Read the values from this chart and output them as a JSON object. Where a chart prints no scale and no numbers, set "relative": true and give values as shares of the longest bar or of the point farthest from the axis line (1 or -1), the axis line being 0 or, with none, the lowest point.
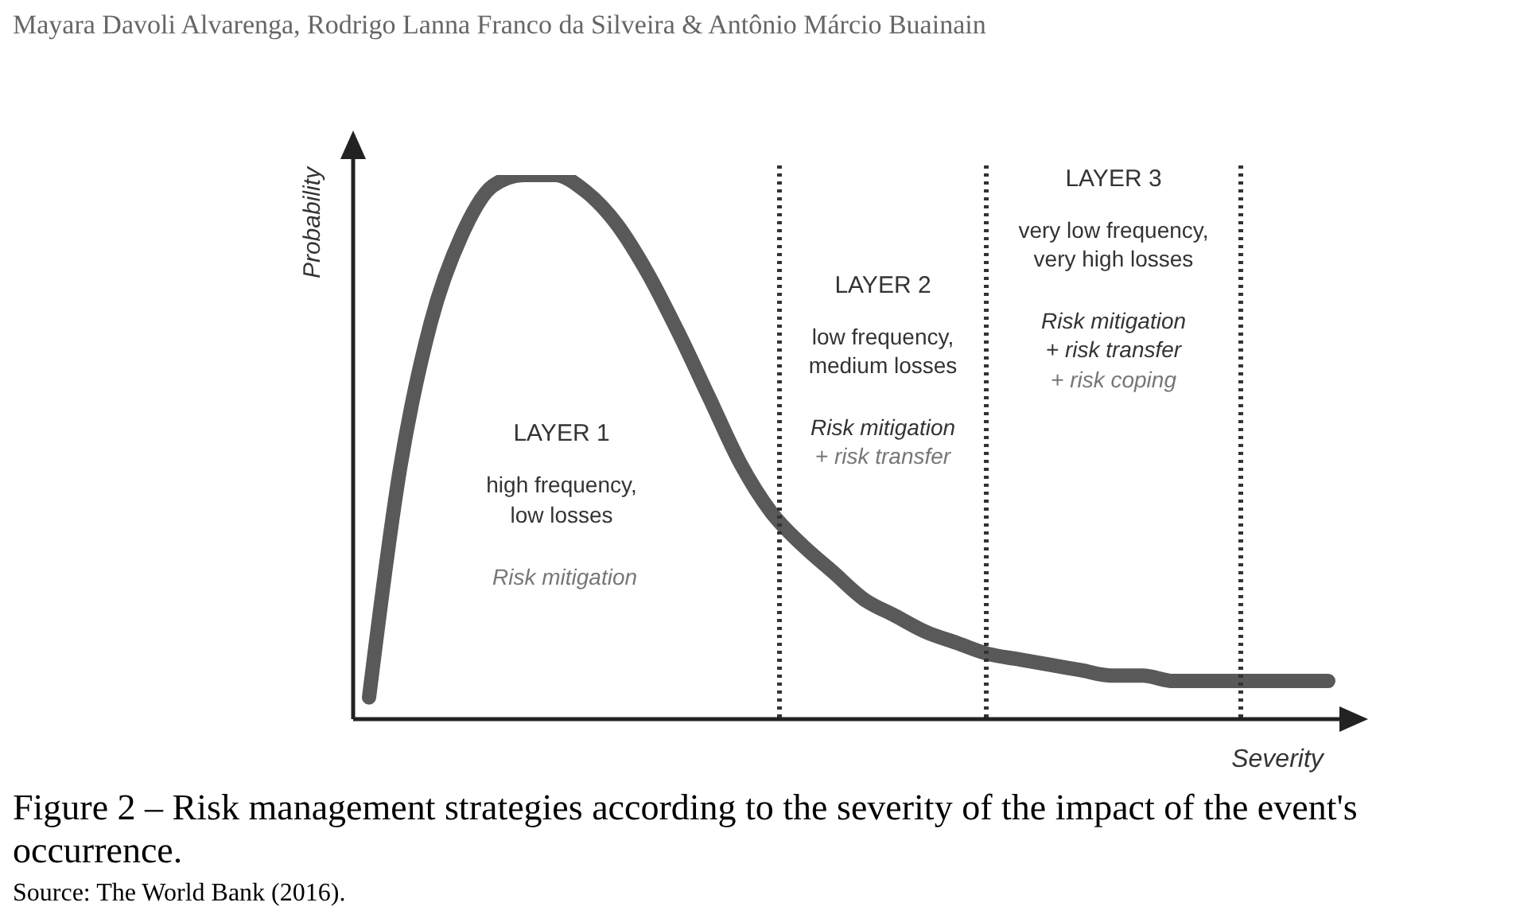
{
  "chart_data": {
    "type": "line",
    "relative": true,
    "title": "Figure 2 – Risk management strategies according to the severity of the impact of the event's occurrence.",
    "xlabel": "Severity",
    "ylabel": "Probability",
    "categories": [
      null,
      null,
      null,
      null,
      null,
      null,
      null,
      null,
      null,
      null,
      null,
      null,
      null,
      null,
      null,
      null,
      null,
      null,
      null,
      null,
      null,
      null,
      null,
      null,
      null,
      null,
      null,
      null,
      null,
      null,
      null,
      null
    ],
    "series": [
      {
        "color": "#595959",
        "values": [
          0.04,
          0.46,
          0.73,
          0.89,
          0.98,
          1,
          1,
          0.97,
          0.91,
          0.82,
          0.71,
          0.59,
          0.47,
          0.38,
          0.32,
          0.27,
          0.22,
          0.19,
          0.16,
          0.14,
          0.12,
          0.11,
          0.1,
          0.09,
          0.08,
          0.08,
          0.07,
          0.07,
          0.07,
          0.07,
          0.07,
          0.07
        ]
      }
    ],
    "marker": "none",
    "annotations": [
      "Mayara Davoli Alvarenga, Rodrigo Lanna Franco da Silveira & Antônio Márcio Buainain",
      "LAYER 1",
      "high frequency,",
      "low losses",
      "Risk mitigation",
      "LAYER 2",
      "low frequency,",
      "medium losses",
      "Risk mitigation",
      "+ risk transfer",
      "LAYER 3",
      "very low frequency,",
      "very high losses",
      "Risk mitigation",
      "+ risk transfer",
      "+ risk coping",
      "Source: The World Bank (2016)."
    ]
  }
}
